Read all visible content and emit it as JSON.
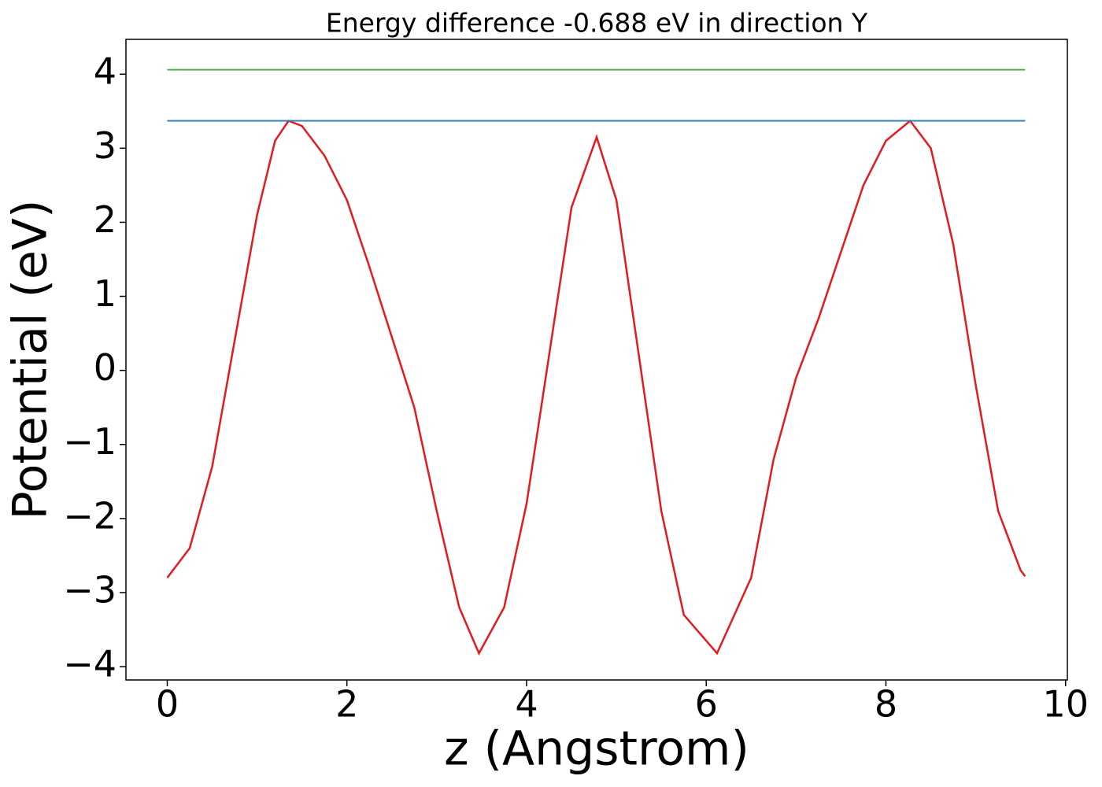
{
  "chart_data": {
    "type": "line",
    "title": "Energy difference -0.688 eV in direction Y",
    "x_label": "z (Angstrom)",
    "y_label": "Potential (eV)",
    "series": [
      {
        "color": "#e41a1c",
        "x": [
          0,
          0.25,
          0.5,
          0.75,
          1.0,
          1.2,
          1.35,
          1.5,
          1.75,
          2.0,
          2.25,
          2.5,
          2.75,
          3.0,
          3.25,
          3.47,
          3.75,
          4.0,
          4.25,
          4.5,
          4.78,
          5.0,
          5.25,
          5.5,
          5.75,
          6.12,
          6.5,
          6.75,
          7.0,
          7.25,
          7.5,
          7.75,
          8.0,
          8.27,
          8.5,
          8.75,
          9.0,
          9.25,
          9.5,
          9.55
        ],
        "values": [
          -2.8,
          -2.4,
          -1.3,
          0.4,
          2.1,
          3.1,
          3.37,
          3.3,
          2.9,
          2.3,
          1.4,
          0.45,
          -0.5,
          -1.9,
          -3.2,
          -3.82,
          -3.2,
          -1.8,
          0.2,
          2.2,
          3.15,
          2.3,
          0.2,
          -1.9,
          -3.3,
          -3.82,
          -2.8,
          -1.2,
          -0.1,
          0.7,
          1.6,
          2.5,
          3.1,
          3.37,
          3.0,
          1.7,
          -0.2,
          -1.9,
          -2.7,
          -2.78
        ]
      },
      {
        "color": "#2f7fb8",
        "x": [
          0,
          9.55
        ],
        "values": [
          3.37,
          3.37
        ]
      },
      {
        "color": "#4daf4a",
        "x": [
          0,
          9.55
        ],
        "values": [
          4.06,
          4.06
        ]
      }
    ],
    "xlim": [
      -0.46,
      10.02
    ],
    "ylim": [
      -4.18,
      4.47
    ],
    "xticks": [
      0,
      2,
      4,
      6,
      8,
      10
    ],
    "yticks": [
      {
        "value": -4,
        "label": "−4"
      },
      {
        "value": -3,
        "label": "−3"
      },
      {
        "value": -2,
        "label": "−2"
      },
      {
        "value": -1,
        "label": "−1"
      },
      0,
      1,
      2,
      3,
      4
    ]
  }
}
